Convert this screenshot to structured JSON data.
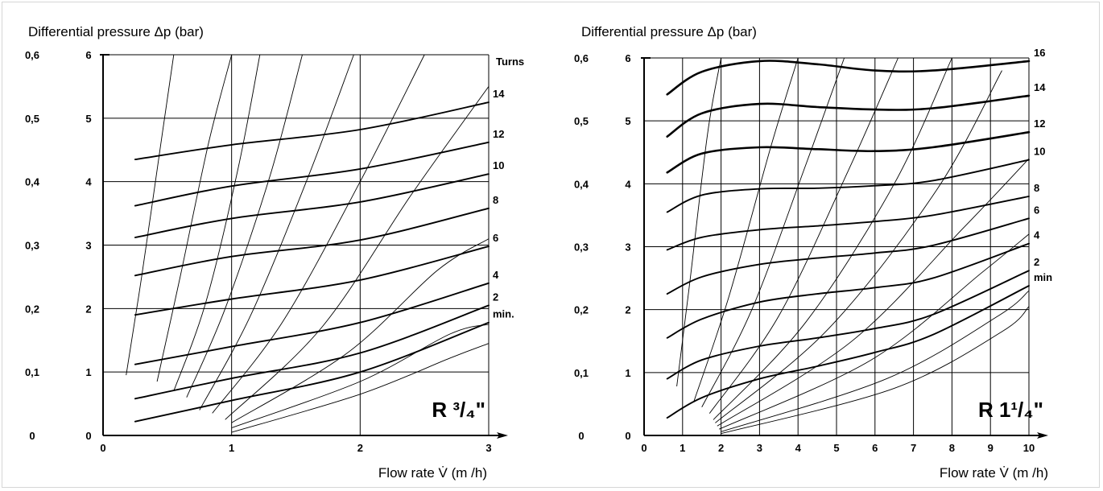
{
  "chart_data": [
    {
      "type": "line",
      "model_label": "R ³/₄\"",
      "ylabel": "Differential pressure Δp (bar)",
      "xlabel": "Flow rate V̇ (m /h)",
      "xlim": [
        0,
        3
      ],
      "ylim": [
        0,
        6
      ],
      "x_ticks": [
        "0",
        "1",
        "2",
        "3"
      ],
      "y_ticks_inner": [
        "0",
        "1",
        "2",
        "3",
        "4",
        "5",
        "6"
      ],
      "y_ticks_outer": [
        "0",
        "0,1",
        "0,2",
        "0,3",
        "0,4",
        "0,5",
        "0,6"
      ],
      "grid": true,
      "curve_header": "Turns",
      "series": [
        {
          "name": "14",
          "x": [
            0.25,
            1.0,
            2.0,
            3.0
          ],
          "y": [
            4.35,
            4.58,
            4.82,
            5.25
          ],
          "weight": "heavy"
        },
        {
          "name": "12",
          "x": [
            0.25,
            1.0,
            2.0,
            3.0
          ],
          "y": [
            3.62,
            3.93,
            4.2,
            4.62
          ],
          "weight": "heavy"
        },
        {
          "name": "10",
          "x": [
            0.25,
            1.0,
            2.0,
            3.0
          ],
          "y": [
            3.12,
            3.42,
            3.68,
            4.12
          ],
          "weight": "heavy"
        },
        {
          "name": "8",
          "x": [
            0.25,
            1.0,
            2.0,
            3.0
          ],
          "y": [
            2.52,
            2.82,
            3.08,
            3.58
          ],
          "weight": "heavy"
        },
        {
          "name": "6",
          "x": [
            0.25,
            1.0,
            2.0,
            3.0
          ],
          "y": [
            1.9,
            2.15,
            2.45,
            2.98
          ],
          "weight": "heavy"
        },
        {
          "name": "4",
          "x": [
            0.25,
            1.0,
            2.0,
            3.0
          ],
          "y": [
            1.12,
            1.4,
            1.78,
            2.4
          ],
          "weight": "heavy"
        },
        {
          "name": "2",
          "x": [
            0.25,
            1.0,
            2.0,
            3.0
          ],
          "y": [
            0.58,
            0.9,
            1.3,
            2.05
          ],
          "weight": "heavy"
        },
        {
          "name": "min.",
          "x": [
            0.25,
            1.0,
            2.0,
            3.0
          ],
          "y": [
            0.22,
            0.55,
            1.0,
            1.78
          ],
          "weight": "heavy"
        }
      ],
      "guide_curves": [
        {
          "x": [
            0.18,
            0.3,
            0.45,
            0.55
          ],
          "y": [
            0.95,
            2.5,
            4.6,
            6.0
          ]
        },
        {
          "x": [
            0.42,
            0.6,
            0.82,
            1.0
          ],
          "y": [
            0.85,
            2.5,
            4.6,
            6.0
          ]
        },
        {
          "x": [
            0.55,
            0.8,
            1.05,
            1.22
          ],
          "y": [
            0.7,
            2.1,
            4.2,
            6.0
          ]
        },
        {
          "x": [
            0.65,
            0.95,
            1.3,
            1.55
          ],
          "y": [
            0.6,
            2.0,
            4.1,
            6.0
          ]
        },
        {
          "x": [
            0.75,
            1.15,
            1.6,
            1.95
          ],
          "y": [
            0.4,
            1.9,
            4.1,
            6.0
          ]
        },
        {
          "x": [
            0.85,
            1.4,
            2.0,
            2.5
          ],
          "y": [
            0.35,
            1.8,
            4.0,
            6.0
          ]
        },
        {
          "x": [
            0.95,
            1.7,
            2.4,
            3.0
          ],
          "y": [
            0.25,
            1.7,
            3.8,
            5.5
          ]
        },
        {
          "x": [
            1.0,
            1.9,
            2.6,
            3.0
          ],
          "y": [
            0.2,
            1.3,
            2.6,
            3.1
          ]
        },
        {
          "x": [
            1.0,
            2.0,
            2.7,
            3.0
          ],
          "y": [
            0.12,
            0.85,
            1.6,
            1.75
          ]
        },
        {
          "x": [
            1.0,
            2.0,
            2.7,
            3.0
          ],
          "y": [
            0.05,
            0.65,
            1.22,
            1.45
          ]
        }
      ]
    },
    {
      "type": "line",
      "model_label": "R 1¹/₄\"",
      "ylabel": "Differential pressure Δp (bar)",
      "xlabel": "Flow rate V̇ (m /h)",
      "xlim": [
        0,
        10
      ],
      "ylim": [
        0,
        6
      ],
      "x_ticks": [
        "0",
        "1",
        "2",
        "3",
        "4",
        "5",
        "6",
        "7",
        "8",
        "9",
        "10"
      ],
      "y_ticks_inner": [
        "0",
        "1",
        "2",
        "3",
        "4",
        "5",
        "6"
      ],
      "y_ticks_outer": [
        "0",
        "0,1",
        "0,2",
        "0,3",
        "0,4",
        "0,5",
        "0,6"
      ],
      "grid": true,
      "curve_header": "",
      "series": [
        {
          "name": "16",
          "x": [
            0.6,
            1.5,
            3.0,
            4.5,
            6.0,
            7.5,
            10.0
          ],
          "y": [
            5.42,
            5.78,
            5.95,
            5.9,
            5.8,
            5.8,
            5.95
          ],
          "weight": "bold"
        },
        {
          "name": "14",
          "x": [
            0.6,
            1.5,
            3.0,
            4.5,
            6.0,
            7.5,
            10.0
          ],
          "y": [
            4.75,
            5.12,
            5.27,
            5.22,
            5.18,
            5.2,
            5.4
          ],
          "weight": "bold"
        },
        {
          "name": "12",
          "x": [
            0.6,
            1.5,
            3.0,
            4.5,
            6.0,
            7.5,
            10.0
          ],
          "y": [
            4.18,
            4.48,
            4.58,
            4.55,
            4.52,
            4.58,
            4.82
          ],
          "weight": "bold"
        },
        {
          "name": "10",
          "x": [
            0.6,
            1.5,
            3.0,
            4.5,
            6.0,
            7.5,
            10.0
          ],
          "y": [
            3.55,
            3.82,
            3.92,
            3.93,
            3.97,
            4.05,
            4.38
          ],
          "weight": "heavy"
        },
        {
          "name": "8",
          "x": [
            0.6,
            1.5,
            3.0,
            4.5,
            6.0,
            7.5,
            10.0
          ],
          "y": [
            2.95,
            3.15,
            3.27,
            3.33,
            3.4,
            3.5,
            3.8
          ],
          "weight": "heavy"
        },
        {
          "name": "6",
          "x": [
            0.6,
            1.5,
            3.0,
            4.5,
            6.0,
            7.5,
            10.0
          ],
          "y": [
            2.25,
            2.52,
            2.72,
            2.82,
            2.9,
            3.02,
            3.45
          ],
          "weight": "heavy"
        },
        {
          "name": "4",
          "x": [
            0.6,
            1.5,
            3.0,
            4.5,
            6.0,
            7.5,
            10.0
          ],
          "y": [
            1.55,
            1.85,
            2.12,
            2.25,
            2.35,
            2.5,
            3.05
          ],
          "weight": "heavy"
        },
        {
          "name": "2",
          "x": [
            0.6,
            1.5,
            3.0,
            4.5,
            6.0,
            7.5,
            10.0
          ],
          "y": [
            0.9,
            1.2,
            1.42,
            1.55,
            1.7,
            1.92,
            2.62
          ],
          "weight": "heavy"
        },
        {
          "name": "min",
          "x": [
            0.6,
            1.5,
            3.0,
            4.5,
            6.0,
            7.5,
            10.0
          ],
          "y": [
            0.28,
            0.6,
            0.9,
            1.1,
            1.32,
            1.6,
            2.38
          ],
          "weight": "heavy"
        }
      ],
      "guide_curves": [
        {
          "x": [
            0.85,
            1.2,
            1.65,
            2.0
          ],
          "y": [
            0.78,
            2.5,
            4.8,
            6.0
          ]
        },
        {
          "x": [
            1.3,
            2.2,
            3.3,
            4.0
          ],
          "y": [
            0.55,
            2.2,
            4.6,
            6.0
          ]
        },
        {
          "x": [
            1.5,
            2.8,
            4.2,
            5.2
          ],
          "y": [
            0.45,
            2.0,
            4.3,
            6.0
          ]
        },
        {
          "x": [
            1.7,
            3.5,
            5.3,
            6.6
          ],
          "y": [
            0.35,
            1.9,
            4.2,
            6.0
          ]
        },
        {
          "x": [
            1.8,
            4.2,
            6.5,
            8.0
          ],
          "y": [
            0.25,
            1.8,
            4.0,
            6.0
          ]
        },
        {
          "x": [
            1.85,
            4.8,
            7.6,
            9.3
          ],
          "y": [
            0.2,
            1.7,
            3.9,
            5.8
          ]
        },
        {
          "x": [
            1.9,
            5.4,
            8.3,
            10.0
          ],
          "y": [
            0.15,
            1.5,
            3.3,
            4.4
          ]
        },
        {
          "x": [
            1.95,
            5.9,
            8.8,
            10.0
          ],
          "y": [
            0.1,
            1.2,
            2.6,
            3.2
          ]
        },
        {
          "x": [
            2.0,
            6.3,
            9.2,
            10.0
          ],
          "y": [
            0.06,
            0.9,
            1.9,
            2.3
          ]
        },
        {
          "x": [
            2.0,
            6.5,
            9.3,
            10.0
          ],
          "y": [
            0.03,
            0.75,
            1.65,
            2.05
          ]
        }
      ]
    }
  ]
}
